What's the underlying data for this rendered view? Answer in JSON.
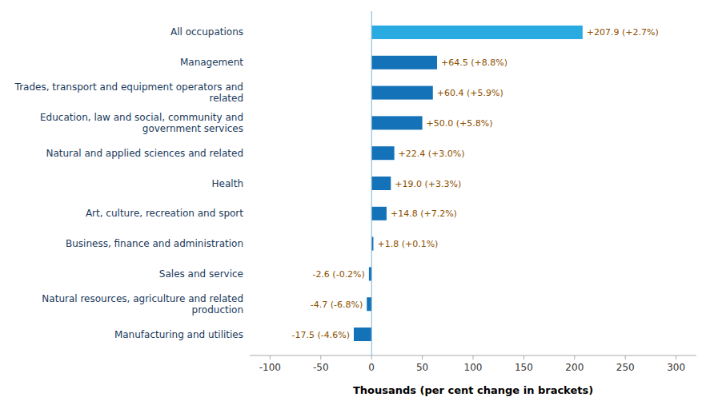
{
  "chart_data": {
    "type": "bar",
    "orientation": "horizontal",
    "categories": [
      "All occupations",
      "Management",
      "Trades, transport and equipment operators and\nrelated",
      "Education, law and social, community and\ngovernment services",
      "Natural and applied sciences and related",
      "Health",
      "Art, culture, recreation and sport",
      "Business, finance and administration",
      "Sales and service",
      "Natural resources, agriculture and related\nproduction",
      "Manufacturing and utilities"
    ],
    "values": [
      207.9,
      64.5,
      60.4,
      50.0,
      22.4,
      19.0,
      14.8,
      1.8,
      -2.6,
      -4.7,
      -17.5
    ],
    "value_labels": [
      "+207.9 (+2.7%)",
      "+64.5 (+8.8%)",
      "+60.4 (+5.9%)",
      "+50.0 (+5.8%)",
      "+22.4 (+3.0%)",
      "+19.0 (+3.3%)",
      "+14.8 (+7.2%)",
      "+1.8 (+0.1%)",
      "-2.6 (-0.2%)",
      "-4.7 (-6.8%)",
      "-17.5 (-4.6%)"
    ],
    "data_labels": true,
    "colors": [
      "#29abe2",
      "#1472b8",
      "#1472b8",
      "#1472b8",
      "#1472b8",
      "#1472b8",
      "#1472b8",
      "#1472b8",
      "#1472b8",
      "#1472b8",
      "#1472b8"
    ],
    "x_label": "Thousands (per cent change in brackets)",
    "xlim": [
      -120,
      320
    ],
    "xticks": [
      -100,
      -50,
      0,
      50,
      100,
      150,
      200,
      250,
      300
    ],
    "grid": false
  }
}
